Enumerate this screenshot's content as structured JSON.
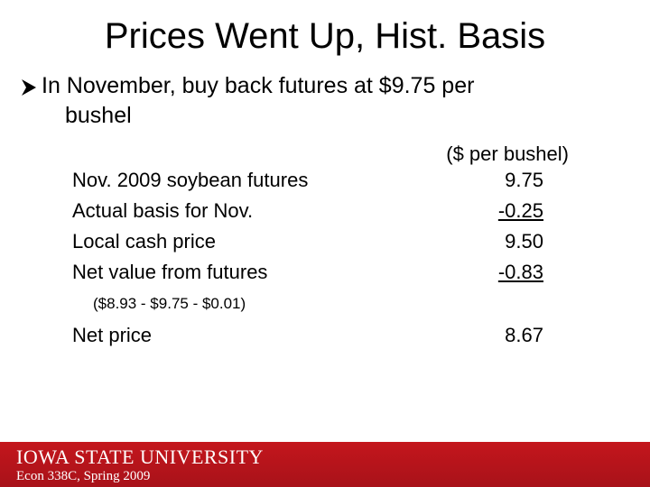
{
  "title": "Prices Went Up, Hist. Basis",
  "bullet": {
    "line1": "In November, buy back futures at $9.75 per",
    "line2": "bushel"
  },
  "table": {
    "column_header": "($ per bushel)",
    "rows": [
      [
        "Nov. 2009 soybean futures",
        "9.75"
      ],
      [
        "Actual basis for Nov.",
        "-0.25"
      ],
      [
        "Local cash price",
        "9.50"
      ],
      [
        "Net value from futures",
        "-0.83"
      ]
    ],
    "note": "($8.93 - $9.75 - $0.01)",
    "total": [
      "Net price",
      "8.67"
    ]
  },
  "footer": {
    "university": "IOWA STATE UNIVERSITY",
    "course": "Econ 338C, Spring 2009"
  }
}
